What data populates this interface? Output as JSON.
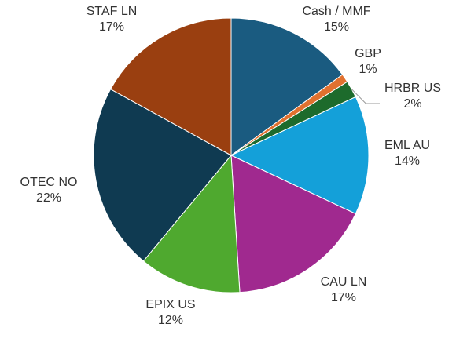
{
  "chart_data": {
    "type": "pie",
    "categories": [
      "Cash / MMF",
      "GBP",
      "HRBR US",
      "EML AU",
      "CAU LN",
      "EPIX US",
      "OTEC NO",
      "STAF LN"
    ],
    "values": [
      15,
      1,
      2,
      14,
      17,
      12,
      22,
      17
    ],
    "value_labels": [
      "15%",
      "1%",
      "2%",
      "14%",
      "17%",
      "12%",
      "22%",
      "17%"
    ],
    "colors": [
      "#1a5b80",
      "#e0712f",
      "#1d6b2c",
      "#14a0d9",
      "#a0298f",
      "#4fa92f",
      "#0f3a51",
      "#9a3f10"
    ]
  }
}
